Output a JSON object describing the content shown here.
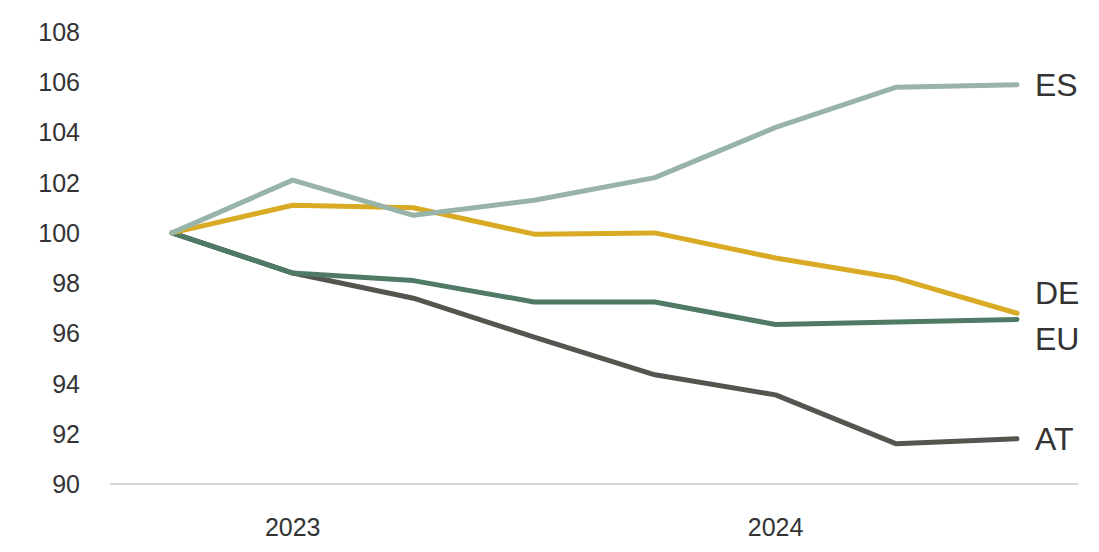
{
  "chart_data": {
    "type": "line",
    "categories": [
      null,
      "2023",
      null,
      null,
      null,
      "2024",
      null,
      null
    ],
    "series": [
      {
        "name": "ES",
        "color": "#98b3a7",
        "values": [
          100,
          102.1,
          100.7,
          101.3,
          102.2,
          104.2,
          105.8,
          105.9
        ]
      },
      {
        "name": "DE",
        "color": "#d9ab25",
        "values": [
          100,
          101.1,
          101.0,
          99.95,
          100.0,
          99.0,
          98.2,
          96.8
        ]
      },
      {
        "name": "EU",
        "color": "#4e7a66",
        "values": [
          100,
          98.4,
          98.1,
          97.25,
          97.25,
          96.35,
          96.45,
          96.55
        ]
      },
      {
        "name": "AT",
        "color": "#555550",
        "values": [
          100,
          98.4,
          97.4,
          95.85,
          94.35,
          93.55,
          91.6,
          91.8
        ]
      }
    ],
    "ylim": [
      90,
      108
    ],
    "yticks": [
      90,
      92,
      94,
      96,
      98,
      100,
      102,
      104,
      106,
      108
    ],
    "grid": false
  }
}
